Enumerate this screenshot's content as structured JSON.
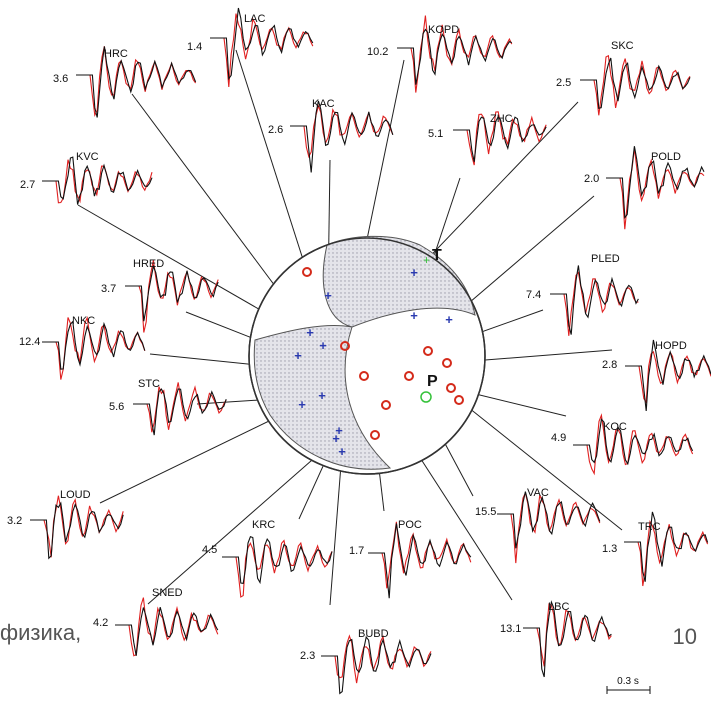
{
  "slide": {
    "footer_text": "физика,",
    "page_number": "10"
  },
  "diagram": {
    "scale_bar_label": "0.3 s",
    "focal_mechanism": {
      "tension_label": "T",
      "pressure_label": "P"
    },
    "stations": [
      {
        "name": "LAC",
        "amp": "1.4"
      },
      {
        "name": "KOPD",
        "amp": "10.2"
      },
      {
        "name": "HRC",
        "amp": "3.6"
      },
      {
        "name": "SKC",
        "amp": "2.5"
      },
      {
        "name": "KAC",
        "amp": "2.6"
      },
      {
        "name": "ZHC",
        "amp": "5.1"
      },
      {
        "name": "KVC",
        "amp": "2.7"
      },
      {
        "name": "POLD",
        "amp": "2.0"
      },
      {
        "name": "HRED",
        "amp": "3.7"
      },
      {
        "name": "PLED",
        "amp": "7.4"
      },
      {
        "name": "NKC",
        "amp": "12.4"
      },
      {
        "name": "HOPD",
        "amp": "2.8"
      },
      {
        "name": "STC",
        "amp": "5.6"
      },
      {
        "name": "KOC",
        "amp": "4.9"
      },
      {
        "name": "LOUD",
        "amp": "3.2"
      },
      {
        "name": "VAC",
        "amp": "15.5"
      },
      {
        "name": "TRC",
        "amp": "1.3"
      },
      {
        "name": "KRC",
        "amp": "4.5"
      },
      {
        "name": "POC",
        "amp": "1.7"
      },
      {
        "name": "SNED",
        "amp": "4.2"
      },
      {
        "name": "LBC",
        "amp": "13.1"
      },
      {
        "name": "BUBD",
        "amp": "2.3"
      }
    ]
  },
  "colors": {
    "observed": "#111111",
    "synthetic": "#e02020",
    "compressional": "#d42a1a",
    "dilatational": "#2a3ab0",
    "shaded": "#d9d9e0",
    "footer": "#555555"
  }
}
